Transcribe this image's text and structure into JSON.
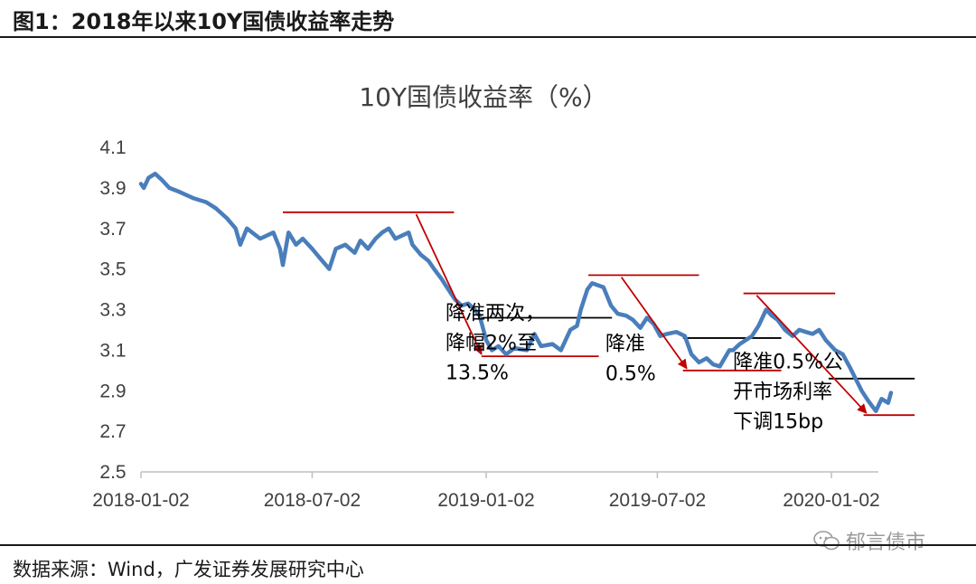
{
  "figure": {
    "title": "图1：2018年以来10Y国债收益率走势",
    "source": "数据来源：Wind，广发证券发展研究中心",
    "watermark": "郁言债市",
    "watermark_icon": "wechat-icon"
  },
  "chart_data": {
    "type": "line",
    "title": "10Y国债收益率（%）",
    "xlabel": "",
    "ylabel": "",
    "ylim": [
      2.5,
      4.1
    ],
    "yticks": [
      "4.1",
      "3.9",
      "3.7",
      "3.5",
      "3.3",
      "3.1",
      "2.9",
      "2.7",
      "2.5"
    ],
    "xticks": [
      "2018-01-02",
      "2018-07-02",
      "2019-01-02",
      "2019-07-02",
      "2020-01-02"
    ],
    "xlim": [
      "2018-01-02",
      "2020-03-05"
    ],
    "grid": false,
    "legend": "none",
    "series": [
      {
        "color": "#4a7ebb",
        "x": [
          "2018-01-02",
          "2018-01-05",
          "2018-01-10",
          "2018-01-17",
          "2018-01-24",
          "2018-02-01",
          "2018-02-12",
          "2018-02-26",
          "2018-03-12",
          "2018-03-22",
          "2018-04-03",
          "2018-04-12",
          "2018-04-17",
          "2018-04-24",
          "2018-05-08",
          "2018-05-22",
          "2018-05-29",
          "2018-06-01",
          "2018-06-07",
          "2018-06-15",
          "2018-06-22",
          "2018-07-02",
          "2018-07-11",
          "2018-07-20",
          "2018-07-27",
          "2018-08-06",
          "2018-08-16",
          "2018-08-22",
          "2018-08-30",
          "2018-09-07",
          "2018-09-14",
          "2018-09-21",
          "2018-09-28",
          "2018-10-12",
          "2018-10-16",
          "2018-10-25",
          "2018-11-02",
          "2018-11-08",
          "2018-11-16",
          "2018-11-23",
          "2018-11-30",
          "2018-12-07",
          "2018-12-14",
          "2018-12-21",
          "2018-12-26",
          "2019-01-02",
          "2019-01-08",
          "2019-01-15",
          "2019-01-23",
          "2019-02-01",
          "2019-02-14",
          "2019-02-22",
          "2019-03-01",
          "2019-03-13",
          "2019-03-22",
          "2019-04-01",
          "2019-04-08",
          "2019-04-12",
          "2019-04-19",
          "2019-04-24",
          "2019-05-06",
          "2019-05-14",
          "2019-05-21",
          "2019-05-30",
          "2019-06-06",
          "2019-06-14",
          "2019-06-21",
          "2019-06-28",
          "2019-07-05",
          "2019-07-12",
          "2019-07-22",
          "2019-07-31",
          "2019-08-07",
          "2019-08-15",
          "2019-08-23",
          "2019-08-30",
          "2019-09-06",
          "2019-09-16",
          "2019-09-20",
          "2019-09-27",
          "2019-10-10",
          "2019-10-17",
          "2019-10-25",
          "2019-10-31",
          "2019-11-06",
          "2019-11-14",
          "2019-11-22",
          "2019-11-29",
          "2019-12-06",
          "2019-12-13",
          "2019-12-20",
          "2019-12-27",
          "2020-01-06",
          "2020-01-14",
          "2020-01-21",
          "2020-02-03",
          "2020-02-10",
          "2020-02-18",
          "2020-02-24",
          "2020-03-02",
          "2020-03-05"
        ],
        "values": [
          3.92,
          3.9,
          3.95,
          3.97,
          3.94,
          3.9,
          3.88,
          3.85,
          3.83,
          3.8,
          3.75,
          3.7,
          3.62,
          3.7,
          3.65,
          3.68,
          3.6,
          3.52,
          3.68,
          3.62,
          3.65,
          3.6,
          3.55,
          3.5,
          3.6,
          3.62,
          3.58,
          3.64,
          3.6,
          3.65,
          3.68,
          3.7,
          3.65,
          3.68,
          3.62,
          3.57,
          3.54,
          3.5,
          3.45,
          3.4,
          3.35,
          3.32,
          3.33,
          3.3,
          3.27,
          3.15,
          3.1,
          3.12,
          3.08,
          3.11,
          3.1,
          3.18,
          3.12,
          3.13,
          3.1,
          3.2,
          3.22,
          3.3,
          3.4,
          3.43,
          3.41,
          3.32,
          3.28,
          3.27,
          3.25,
          3.21,
          3.26,
          3.23,
          3.17,
          3.18,
          3.19,
          3.17,
          3.08,
          3.04,
          3.06,
          3.03,
          3.02,
          3.1,
          3.1,
          3.13,
          3.17,
          3.22,
          3.3,
          3.27,
          3.25,
          3.2,
          3.17,
          3.2,
          3.19,
          3.18,
          3.2,
          3.15,
          3.1,
          3.08,
          3.02,
          2.9,
          2.85,
          2.8,
          2.86,
          2.84,
          2.89
        ]
      }
    ],
    "annotations": [
      {
        "lines": [
          "降准两次，",
          "降幅2%至",
          "13.5%"
        ],
        "x": "2018-11-20",
        "y": 3.25
      },
      {
        "lines": [
          "降准",
          "0.5%"
        ],
        "x": "2019-05-08",
        "y": 3.1
      },
      {
        "lines": [
          "降准0.5%公",
          "开市场利率",
          "下调15bp"
        ],
        "x": "2019-09-20",
        "y": 3.01
      }
    ],
    "reference_lines": [
      {
        "color": "#c00000",
        "x1": "2018-06-01",
        "x2": "2018-11-29",
        "y": 3.78
      },
      {
        "color": "#c00000",
        "x1": "2018-12-28",
        "x2": "2019-05-01",
        "y": 3.07
      },
      {
        "color": "#000000",
        "x1": "2018-12-28",
        "x2": "2019-05-15",
        "y": 3.26
      },
      {
        "color": "#c00000",
        "x1": "2019-04-20",
        "x2": "2019-08-15",
        "y": 3.47
      },
      {
        "color": "#000000",
        "x1": "2019-07-29",
        "x2": "2019-11-10",
        "y": 3.16
      },
      {
        "color": "#c00000",
        "x1": "2019-07-29",
        "x2": "2019-11-10",
        "y": 3.0
      },
      {
        "color": "#c00000",
        "x1": "2019-10-01",
        "x2": "2020-01-06",
        "y": 3.38
      },
      {
        "color": "#000000",
        "x1": "2019-12-30",
        "x2": "2020-03-30",
        "y": 2.96
      },
      {
        "color": "#c00000",
        "x1": "2020-02-05",
        "x2": "2020-03-30",
        "y": 2.78
      }
    ],
    "arrows": [
      {
        "color": "#c00000",
        "x1": "2018-10-20",
        "y1": 3.77,
        "x2": "2018-12-28",
        "y2": 3.08
      },
      {
        "color": "#c00000",
        "x1": "2019-05-25",
        "y1": 3.46,
        "x2": "2019-08-02",
        "y2": 3.01
      },
      {
        "color": "#c00000",
        "x1": "2019-10-15",
        "y1": 3.37,
        "x2": "2020-02-08",
        "y2": 2.79
      }
    ]
  }
}
